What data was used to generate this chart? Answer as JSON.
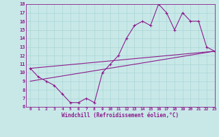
{
  "line1_x": [
    0,
    1,
    2,
    3,
    4,
    5,
    6,
    7,
    8,
    9,
    10,
    11,
    12,
    13,
    14,
    15,
    16,
    17,
    18,
    19,
    20,
    21,
    22,
    23
  ],
  "line1_y": [
    10.5,
    9.5,
    9.0,
    8.5,
    7.5,
    6.5,
    6.5,
    7.0,
    6.5,
    10.0,
    11.0,
    12.0,
    14.0,
    15.5,
    16.0,
    15.5,
    18.0,
    17.0,
    15.0,
    17.0,
    16.0,
    16.0,
    13.0,
    12.5
  ],
  "line2_x": [
    0,
    23
  ],
  "line2_y": [
    9.0,
    12.5
  ],
  "line3_x": [
    0,
    23
  ],
  "line3_y": [
    10.5,
    12.5
  ],
  "color": "#8b1a8b",
  "bg_color": "#c8e8e8",
  "grid_color": "#aad4d4",
  "xlabel": "Windchill (Refroidissement éolien,°C)",
  "xlim": [
    -0.5,
    23
  ],
  "ylim": [
    6,
    18
  ],
  "xticks": [
    0,
    1,
    2,
    3,
    4,
    5,
    6,
    7,
    8,
    9,
    10,
    11,
    12,
    13,
    14,
    15,
    16,
    17,
    18,
    19,
    20,
    21,
    22,
    23
  ],
  "yticks": [
    6,
    7,
    8,
    9,
    10,
    11,
    12,
    13,
    14,
    15,
    16,
    17,
    18
  ]
}
